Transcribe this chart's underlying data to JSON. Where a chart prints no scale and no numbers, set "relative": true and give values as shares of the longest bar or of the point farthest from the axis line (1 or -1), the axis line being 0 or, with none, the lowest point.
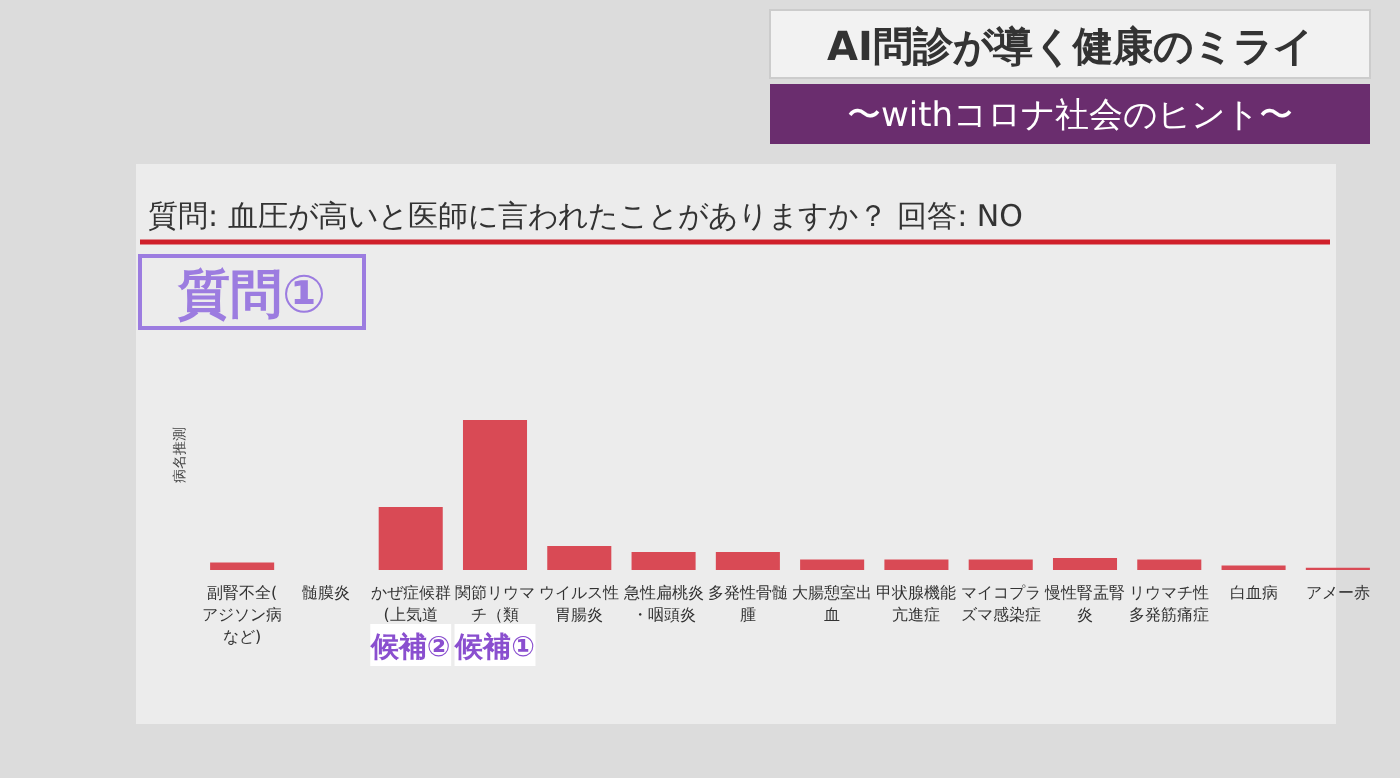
{
  "chart_data": {
    "type": "bar",
    "relative": true,
    "title": "質問: 血圧が高いと医師に言われたことがありますか？ 回答: NO",
    "ylabel": "病名推測",
    "categories": [
      "副腎不全(アジソン病など)",
      "髄膜炎",
      "かぜ症候群(上気道",
      "関節リウマチ（類",
      "ウイルス性胃腸炎",
      "急性扁桃炎・咽頭炎",
      "多発性骨髄腫",
      "大腸憩室出血",
      "甲状腺機能亢進症",
      "マイコプラズマ感染症",
      "慢性腎盂腎炎",
      "リウマチ性多発筋痛症",
      "白血病",
      "アメー赤"
    ],
    "values": [
      0.05,
      0,
      0.42,
      1,
      0.16,
      0.12,
      0.12,
      0.07,
      0.07,
      0.07,
      0.08,
      0.07,
      0.03,
      0.015
    ],
    "color": "#d94a55",
    "annotations": [
      "AI問診が導く健康のミライ",
      "〜withコロナ社会のヒント〜",
      "質問①",
      "候補②",
      "候補①"
    ]
  }
}
